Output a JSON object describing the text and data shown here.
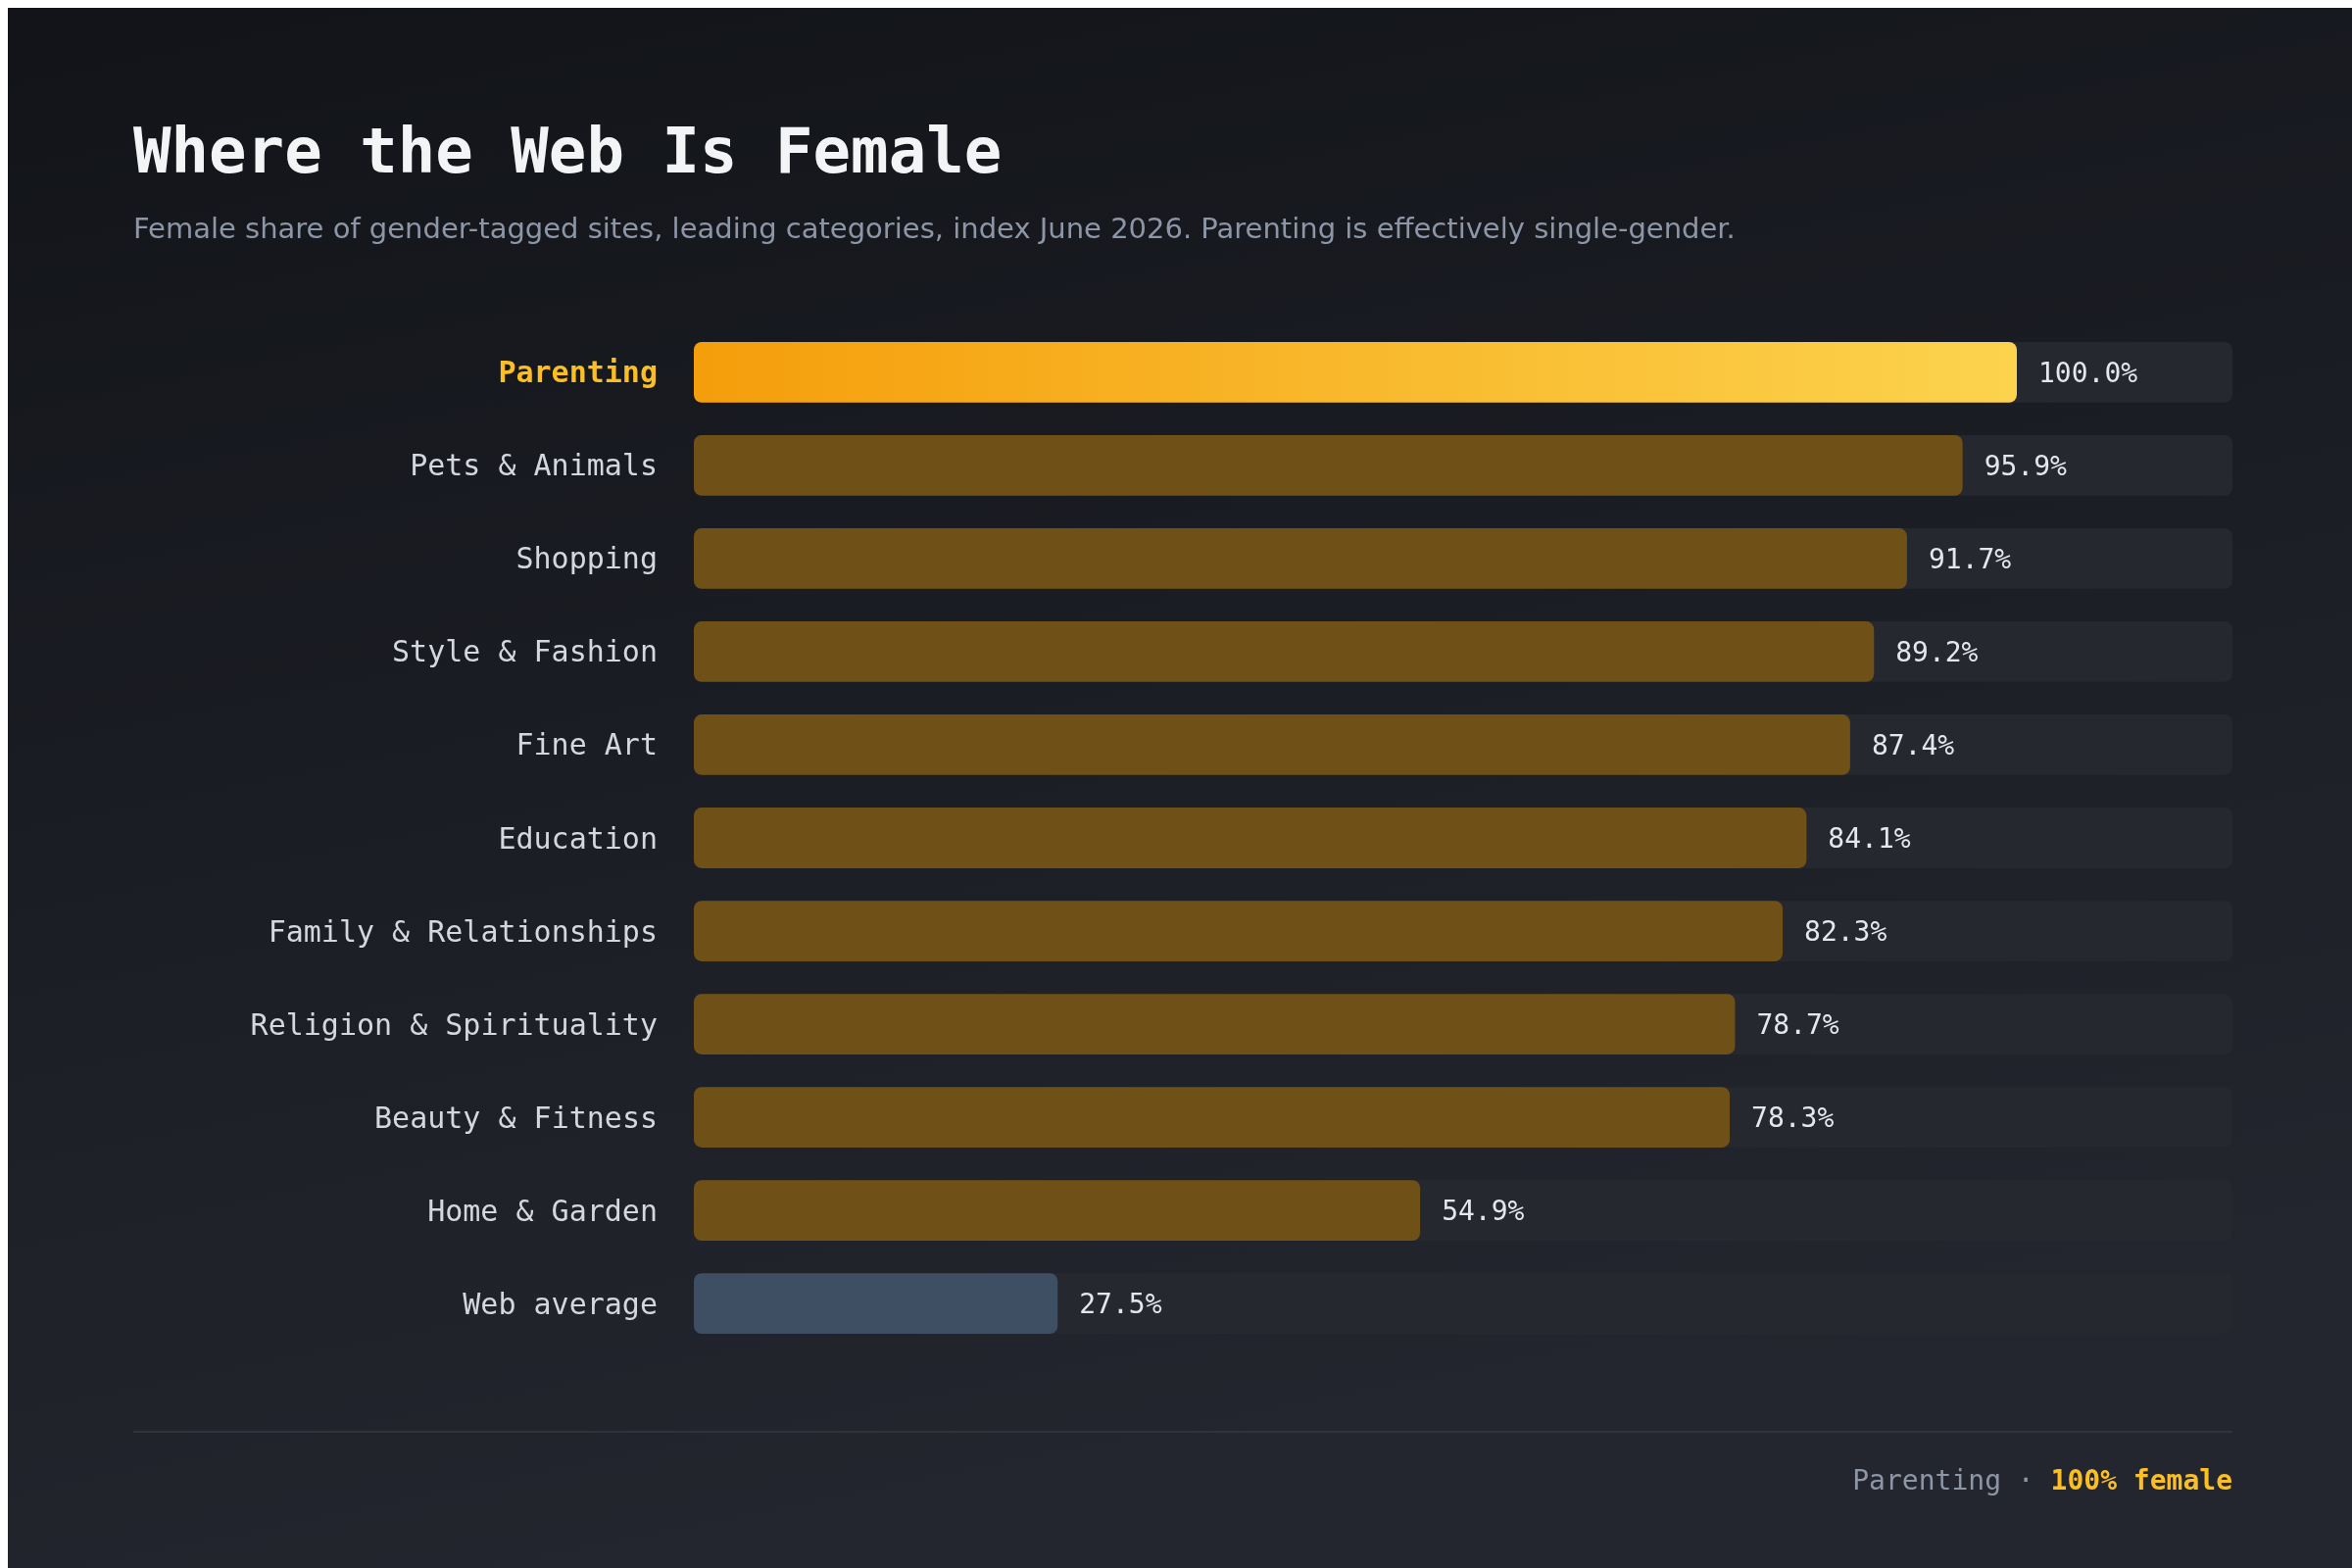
{
  "chart_data": {
    "type": "bar",
    "orientation": "horizontal",
    "title": "Where the Web Is Female",
    "subtitle": "Female share of gender-tagged sites, leading categories, index June 2026. Parenting is effectively single-gender.",
    "categories": [
      "Parenting",
      "Pets & Animals",
      "Shopping",
      "Style & Fashion",
      "Fine Art",
      "Education",
      "Family & Relationships",
      "Religion & Spirituality",
      "Beauty & Fitness",
      "Home & Garden",
      "Web average"
    ],
    "values": [
      100.0,
      95.9,
      91.7,
      89.2,
      87.4,
      84.1,
      82.3,
      78.7,
      78.3,
      54.9,
      27.5
    ],
    "value_labels": [
      "100.0%",
      "95.9%",
      "91.7%",
      "89.2%",
      "87.4%",
      "84.1%",
      "82.3%",
      "78.7%",
      "78.3%",
      "54.9%",
      "27.5%"
    ],
    "colors": [
      "#fbbf24",
      "#6f5016",
      "#6f5016",
      "#6f5016",
      "#6f5016",
      "#6f5016",
      "#6f5016",
      "#6f5016",
      "#6f5016",
      "#6f5016",
      "#3f4f63"
    ],
    "annotations": [
      "Parenting · 100% female"
    ]
  }
}
